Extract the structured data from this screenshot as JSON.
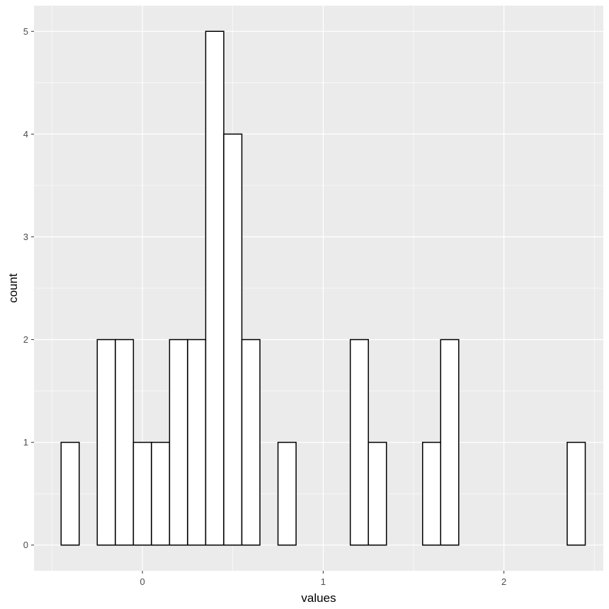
{
  "chart_data": {
    "type": "bar",
    "subtype": "histogram",
    "xlabel": "values",
    "ylabel": "count",
    "xlim": [
      -0.6,
      2.55
    ],
    "ylim": [
      -0.25,
      5.25
    ],
    "x_ticks": [
      0,
      1,
      2
    ],
    "y_ticks": [
      0,
      1,
      2,
      3,
      4,
      5
    ],
    "bin_width": 0.1,
    "bins_start": [
      -0.45,
      -0.35,
      -0.25,
      -0.15,
      -0.05,
      0.05,
      0.15,
      0.25,
      0.35,
      0.45,
      0.55,
      0.65,
      0.75,
      0.85,
      0.95,
      1.05,
      1.15,
      1.25,
      1.35,
      1.45,
      1.55,
      1.65,
      1.75,
      1.85,
      1.95,
      2.05,
      2.15,
      2.25,
      2.35
    ],
    "counts": [
      1,
      0,
      2,
      2,
      1,
      1,
      2,
      2,
      5,
      4,
      2,
      0,
      1,
      0,
      0,
      0,
      2,
      1,
      0,
      0,
      1,
      2,
      0,
      0,
      0,
      0,
      0,
      0,
      1
    ],
    "bar_fill": "#ffffff",
    "bar_stroke": "#000000",
    "panel_background": "#ebebeb",
    "grid_color": "#ffffff",
    "grid": true
  }
}
